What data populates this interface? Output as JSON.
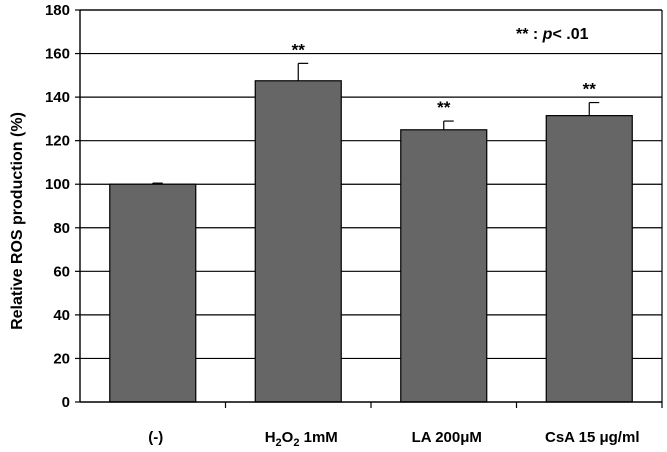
{
  "chart_data": {
    "type": "bar",
    "categories": [
      {
        "parts": [
          {
            "text": "(-)"
          }
        ]
      },
      {
        "parts": [
          {
            "text": "H"
          },
          {
            "text": "2",
            "sub": true
          },
          {
            "text": "O"
          },
          {
            "text": "2",
            "sub": true
          },
          {
            "text": " 1mM"
          }
        ]
      },
      {
        "parts": [
          {
            "text": "LA 200μM"
          }
        ]
      },
      {
        "parts": [
          {
            "text": "CsA 15 μg/ml"
          }
        ]
      }
    ],
    "values": [
      100,
      147.5,
      125,
      131.5
    ],
    "errors": [
      0.5,
      8,
      4,
      6
    ],
    "significance": [
      "",
      "**",
      "**",
      "**"
    ],
    "ylabel": "Relative ROS production (%)",
    "xlabel": "",
    "ylim": [
      0,
      180
    ],
    "yticks": [
      0,
      20,
      40,
      60,
      80,
      100,
      120,
      140,
      160,
      180
    ],
    "grid": true,
    "bar_color": "#666666",
    "annotation": {
      "stars": "**",
      "colon": " : ",
      "p": "p",
      "rest": "< .01"
    }
  }
}
